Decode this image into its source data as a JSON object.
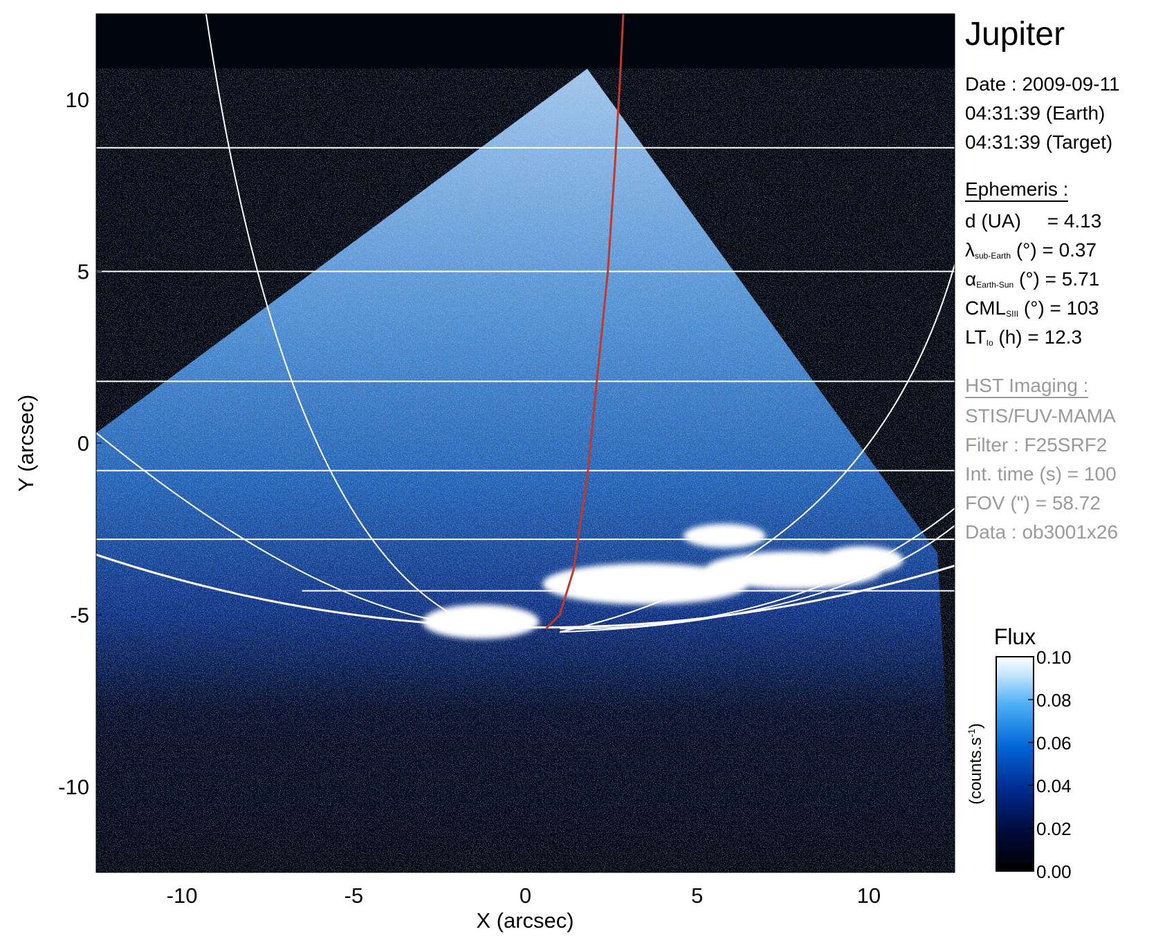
{
  "chart_data": {
    "type": "heatmap",
    "title": "Jupiter",
    "xlabel": "X (arcsec)",
    "ylabel": "Y (arcsec)",
    "xlim": [
      -12.5,
      12.5
    ],
    "ylim": [
      -12.5,
      12.5
    ],
    "xticks": [
      -10,
      -5,
      0,
      5,
      10
    ],
    "yticks": [
      -10,
      -5,
      0,
      5,
      10
    ],
    "colorbar": {
      "title": "Flux",
      "label": "(counts.s",
      "label_sup": "-1",
      "label_end": ")",
      "range": [
        0.0,
        0.1
      ],
      "ticks": [
        "0.00",
        "0.02",
        "0.04",
        "0.06",
        "0.08",
        "0.10"
      ]
    },
    "fov_polygon": [
      [
        -12.5,
        0.3
      ],
      [
        1.8,
        10.9
      ],
      [
        12.0,
        -3.2
      ],
      [
        12.5,
        -12.5
      ],
      [
        -12.5,
        -12.5
      ]
    ],
    "latitude_lines_y": [
      8.6,
      5.0,
      1.8,
      -0.8,
      -2.8,
      -4.3
    ],
    "auroral_spots": [
      {
        "x": -1.3,
        "y": -5.2,
        "rx": 1.7,
        "ry": 0.5
      },
      {
        "x": 5.8,
        "y": -2.7,
        "rx": 1.2,
        "ry": 0.35
      },
      {
        "x": 3.5,
        "y": -4.1,
        "rx": 3.0,
        "ry": 0.6
      },
      {
        "x": 7.8,
        "y": -3.7,
        "rx": 2.6,
        "ry": 0.55
      },
      {
        "x": 9.8,
        "y": -3.4,
        "rx": 1.2,
        "ry": 0.4
      }
    ],
    "io_footprint_curve": [
      [
        0.6,
        -5.4
      ],
      [
        1.0,
        -5.0
      ],
      [
        1.4,
        -3.7
      ],
      [
        1.8,
        -1.0
      ],
      [
        2.1,
        2.0
      ],
      [
        2.4,
        5.0
      ],
      [
        2.6,
        8.0
      ],
      [
        2.75,
        10.5
      ],
      [
        2.85,
        12.5
      ]
    ],
    "limb_center": [
      0.5,
      35.5
    ],
    "limb_radius": 40.9,
    "colors": {
      "background": "#000510",
      "grid": "#ffffff",
      "io_footprint": "#c0392b"
    }
  },
  "panel": {
    "target": "Jupiter",
    "date_line": "Date : 2009-09-11",
    "earth_time": "04:31:39 (Earth)",
    "target_time": "04:31:39 (Target)",
    "ephemeris_header": "Ephemeris :",
    "d_label": "d (UA)",
    "d_value": "= 4.13",
    "lambda_sym": "λ",
    "lambda_sub": "sub-Earth",
    "lambda_rest": "(°) = 0.37",
    "alpha_sym": "α",
    "alpha_sub": "Earth-Sun",
    "alpha_rest": "(°) = 5.71",
    "cml_sym": "CML",
    "cml_sub": "SIII",
    "cml_rest": "(°) = 103",
    "lt_sym": "LT",
    "lt_sub": "Io",
    "lt_rest": "(h) = 12.3",
    "hst_header": "HST Imaging :",
    "instrument": "STIS/FUV-MAMA",
    "filter": "Filter : F25SRF2",
    "int_time": "Int. time (s) = 100",
    "fov": "FOV (\") = 58.72",
    "data_id": "Data : ob3001x26"
  }
}
